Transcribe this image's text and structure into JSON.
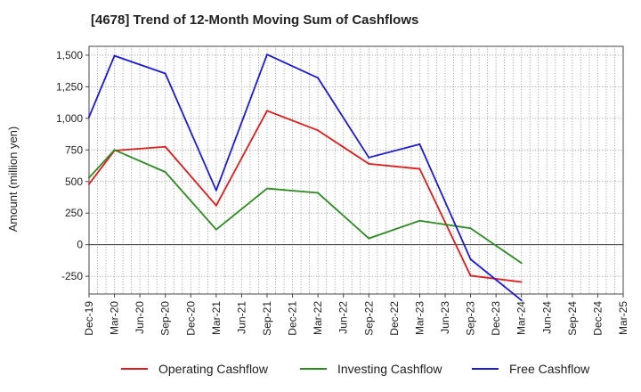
{
  "chart_data": {
    "type": "line",
    "title": "[4678]  Trend of 12-Month Moving Sum of Cashflows",
    "xlabel": "",
    "ylabel": "Amount (million yen)",
    "ylim": [
      -390,
      1570
    ],
    "yticks": [
      1500,
      1250,
      1000,
      750,
      500,
      250,
      0,
      -250
    ],
    "ytick_labels": [
      "1,500",
      "1,250",
      "1,000",
      "750",
      "500",
      "250",
      "0",
      "-250"
    ],
    "categories": [
      "Dec-19",
      "Mar-20",
      "Jun-20",
      "Sep-20",
      "Dec-20",
      "Mar-21",
      "Jun-21",
      "Sep-21",
      "Dec-21",
      "Mar-22",
      "Jun-22",
      "Sep-22",
      "Dec-22",
      "Mar-23",
      "Jun-23",
      "Sep-23",
      "Dec-23",
      "Mar-24",
      "Jun-24",
      "Sep-24",
      "Dec-24",
      "Mar-25"
    ],
    "grid": true,
    "legend_position": "bottom",
    "series": [
      {
        "name": "Operating Cashflow",
        "color": "#e01b1b",
        "points": [
          [
            "Dec-19",
            480
          ],
          [
            "Mar-20",
            745
          ],
          [
            "Sep-20",
            775
          ],
          [
            "Mar-21",
            310
          ],
          [
            "Sep-21",
            1060
          ],
          [
            "Mar-22",
            905
          ],
          [
            "Sep-22",
            640
          ],
          [
            "Mar-23",
            600
          ],
          [
            "Sep-23",
            -245
          ],
          [
            "Mar-24",
            -295
          ]
        ]
      },
      {
        "name": "Investing Cashflow",
        "color": "#2e8b22",
        "points": [
          [
            "Dec-19",
            530
          ],
          [
            "Mar-20",
            750
          ],
          [
            "Sep-20",
            575
          ],
          [
            "Mar-21",
            120
          ],
          [
            "Sep-21",
            445
          ],
          [
            "Mar-22",
            410
          ],
          [
            "Sep-22",
            50
          ],
          [
            "Mar-23",
            190
          ],
          [
            "Sep-23",
            130
          ],
          [
            "Mar-24",
            -145
          ]
        ]
      },
      {
        "name": "Free Cashflow",
        "color": "#1a1ad9",
        "points": [
          [
            "Dec-19",
            1010
          ],
          [
            "Mar-20",
            1495
          ],
          [
            "Sep-20",
            1355
          ],
          [
            "Mar-21",
            430
          ],
          [
            "Sep-21",
            1505
          ],
          [
            "Mar-22",
            1320
          ],
          [
            "Sep-22",
            690
          ],
          [
            "Mar-23",
            795
          ],
          [
            "Sep-23",
            -115
          ],
          [
            "Mar-24",
            -440
          ]
        ]
      }
    ]
  }
}
